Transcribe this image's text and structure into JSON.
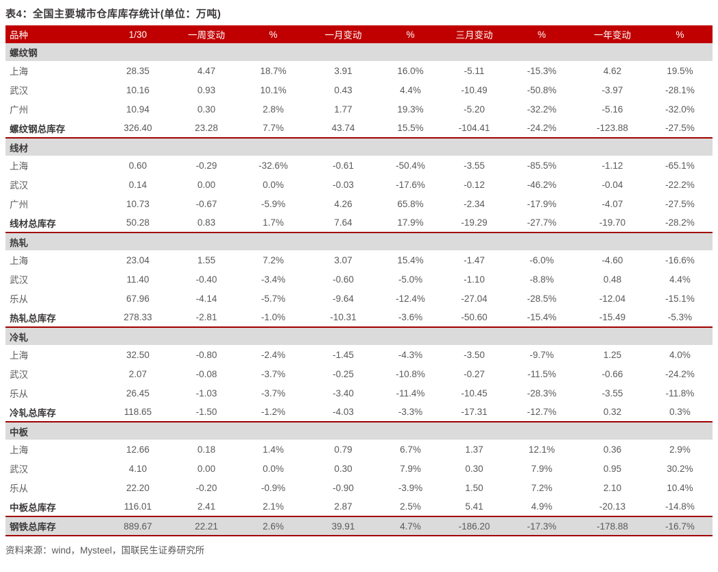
{
  "title": "表4：全国主要城市仓库库存统计(单位：万吨)",
  "source": "资料来源：wind，Mysteel，国联民生证券研究所",
  "colors": {
    "header_bg": "#c00000",
    "divider_line": "#a00000",
    "section_row_bg": "#dbdbdb",
    "title_text": "#3b3838",
    "body_text": "#595959",
    "header_text": "#ffffff"
  },
  "table": {
    "headers": [
      "品种",
      "1/30",
      "一周变动",
      "%",
      "一月变动",
      "%",
      "三月变动",
      "%",
      "一年变动",
      "%"
    ],
    "sections": [
      {
        "name": "螺纹钢",
        "rows": [
          {
            "label": "上海",
            "values": [
              "28.35",
              "4.47",
              "18.7%",
              "3.91",
              "16.0%",
              "-5.11",
              "-15.3%",
              "4.62",
              "19.5%"
            ]
          },
          {
            "label": "武汉",
            "values": [
              "10.16",
              "0.93",
              "10.1%",
              "0.43",
              "4.4%",
              "-10.49",
              "-50.8%",
              "-3.97",
              "-28.1%"
            ]
          },
          {
            "label": "广州",
            "values": [
              "10.94",
              "0.30",
              "2.8%",
              "1.77",
              "19.3%",
              "-5.20",
              "-32.2%",
              "-5.16",
              "-32.0%"
            ]
          }
        ],
        "total": {
          "label": "螺纹钢总库存",
          "values": [
            "326.40",
            "23.28",
            "7.7%",
            "43.74",
            "15.5%",
            "-104.41",
            "-24.2%",
            "-123.88",
            "-27.5%"
          ]
        }
      },
      {
        "name": "线材",
        "rows": [
          {
            "label": "上海",
            "values": [
              "0.60",
              "-0.29",
              "-32.6%",
              "-0.61",
              "-50.4%",
              "-3.55",
              "-85.5%",
              "-1.12",
              "-65.1%"
            ]
          },
          {
            "label": "武汉",
            "values": [
              "0.14",
              "0.00",
              "0.0%",
              "-0.03",
              "-17.6%",
              "-0.12",
              "-46.2%",
              "-0.04",
              "-22.2%"
            ]
          },
          {
            "label": "广州",
            "values": [
              "10.73",
              "-0.67",
              "-5.9%",
              "4.26",
              "65.8%",
              "-2.34",
              "-17.9%",
              "-4.07",
              "-27.5%"
            ]
          }
        ],
        "total": {
          "label": "线材总库存",
          "values": [
            "50.28",
            "0.83",
            "1.7%",
            "7.64",
            "17.9%",
            "-19.29",
            "-27.7%",
            "-19.70",
            "-28.2%"
          ]
        }
      },
      {
        "name": "热轧",
        "rows": [
          {
            "label": "上海",
            "values": [
              "23.04",
              "1.55",
              "7.2%",
              "3.07",
              "15.4%",
              "-1.47",
              "-6.0%",
              "-4.60",
              "-16.6%"
            ]
          },
          {
            "label": "武汉",
            "values": [
              "11.40",
              "-0.40",
              "-3.4%",
              "-0.60",
              "-5.0%",
              "-1.10",
              "-8.8%",
              "0.48",
              "4.4%"
            ]
          },
          {
            "label": "乐从",
            "values": [
              "67.96",
              "-4.14",
              "-5.7%",
              "-9.64",
              "-12.4%",
              "-27.04",
              "-28.5%",
              "-12.04",
              "-15.1%"
            ]
          }
        ],
        "total": {
          "label": "热轧总库存",
          "values": [
            "278.33",
            "-2.81",
            "-1.0%",
            "-10.31",
            "-3.6%",
            "-50.60",
            "-15.4%",
            "-15.49",
            "-5.3%"
          ]
        }
      },
      {
        "name": "冷轧",
        "rows": [
          {
            "label": "上海",
            "values": [
              "32.50",
              "-0.80",
              "-2.4%",
              "-1.45",
              "-4.3%",
              "-3.50",
              "-9.7%",
              "1.25",
              "4.0%"
            ]
          },
          {
            "label": "武汉",
            "values": [
              "2.07",
              "-0.08",
              "-3.7%",
              "-0.25",
              "-10.8%",
              "-0.27",
              "-11.5%",
              "-0.66",
              "-24.2%"
            ]
          },
          {
            "label": "乐从",
            "values": [
              "26.45",
              "-1.03",
              "-3.7%",
              "-3.40",
              "-11.4%",
              "-10.45",
              "-28.3%",
              "-3.55",
              "-11.8%"
            ]
          }
        ],
        "total": {
          "label": "冷轧总库存",
          "values": [
            "118.65",
            "-1.50",
            "-1.2%",
            "-4.03",
            "-3.3%",
            "-17.31",
            "-12.7%",
            "0.32",
            "0.3%"
          ]
        }
      },
      {
        "name": "中板",
        "rows": [
          {
            "label": "上海",
            "values": [
              "12.66",
              "0.18",
              "1.4%",
              "0.79",
              "6.7%",
              "1.37",
              "12.1%",
              "0.36",
              "2.9%"
            ]
          },
          {
            "label": "武汉",
            "values": [
              "4.10",
              "0.00",
              "0.0%",
              "0.30",
              "7.9%",
              "0.30",
              "7.9%",
              "0.95",
              "30.2%"
            ]
          },
          {
            "label": "乐从",
            "values": [
              "22.20",
              "-0.20",
              "-0.9%",
              "-0.90",
              "-3.9%",
              "1.50",
              "7.2%",
              "2.10",
              "10.4%"
            ]
          }
        ],
        "total": {
          "label": "中板总库存",
          "values": [
            "116.01",
            "2.41",
            "2.1%",
            "2.87",
            "2.5%",
            "5.41",
            "4.9%",
            "-20.13",
            "-14.8%"
          ]
        }
      }
    ],
    "grand_total": {
      "label": "钢铁总库存",
      "values": [
        "889.67",
        "22.21",
        "2.6%",
        "39.91",
        "4.7%",
        "-186.20",
        "-17.3%",
        "-178.88",
        "-16.7%"
      ]
    }
  }
}
